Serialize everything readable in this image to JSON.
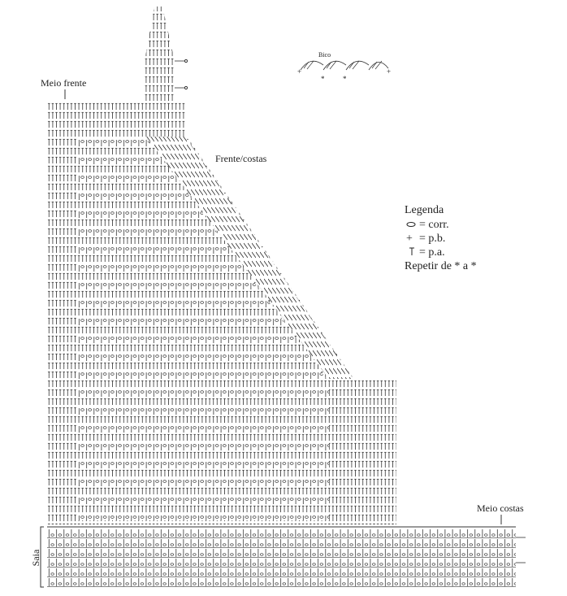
{
  "labels": {
    "bico": "Bico",
    "meio_frente": "Meio frente",
    "frente_costas": "Frente/costas",
    "meio_costas": "Meio costas",
    "saia": "Saia"
  },
  "legend": {
    "title": "Legenda",
    "items": [
      "= corr.",
      "= p.b.",
      "= p.a."
    ],
    "note": "Repetir de * a *"
  }
}
